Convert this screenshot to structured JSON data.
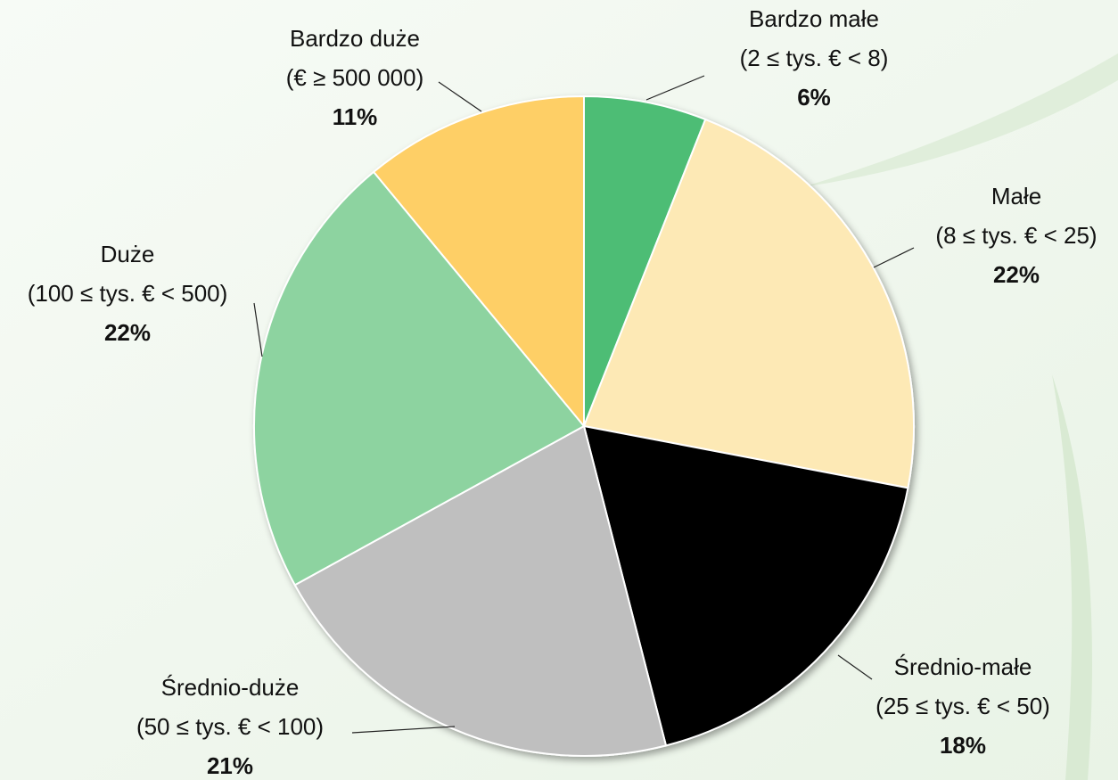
{
  "chart_data": {
    "type": "pie",
    "categories": [
      "Bardzo małe",
      "Małe",
      "Średnio-małe",
      "Średnio-duże",
      "Duże",
      "Bardzo duże"
    ],
    "ranges": [
      "(2  ≤ tys. € < 8)",
      "(8 ≤ tys. € < 25)",
      "(25 ≤ tys. € < 50)",
      "(50  ≤ tys.  € < 100)",
      "(100 ≤ tys. € < 500)",
      "(€ ≥ 500 000)"
    ],
    "values": [
      6,
      22,
      18,
      21,
      22,
      11
    ],
    "value_labels": [
      "6%",
      "22%",
      "18%",
      "21%",
      "22%",
      "11%"
    ],
    "colors": [
      "#4dbd74",
      "#fde9b5",
      "#050505",
      "#bfbfbf",
      "#8dd3a0",
      "#fecf66"
    ]
  }
}
